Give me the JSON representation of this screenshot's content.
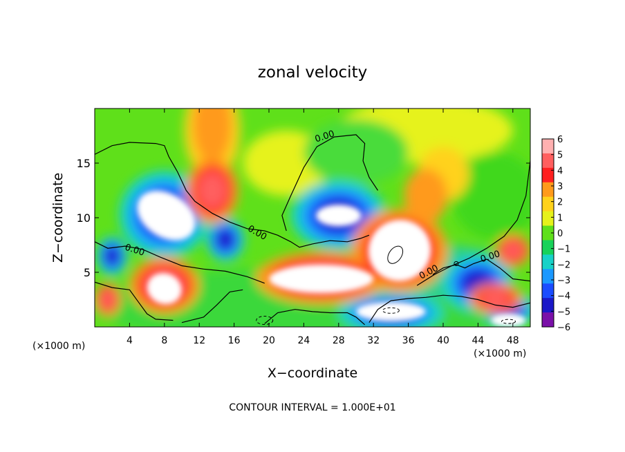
{
  "chart_data": {
    "type": "heatmap",
    "title": "zonal velocity",
    "xlabel": "X−coordinate",
    "ylabel": "Z−coordinate",
    "x_unit": "(×1000 m)",
    "y_unit": "(×1000 m)",
    "footer": "CONTOUR INTERVAL = 1.000E+01",
    "xlim": [
      0,
      50
    ],
    "ylim": [
      0,
      20
    ],
    "x_ticks": [
      4,
      8,
      12,
      16,
      20,
      24,
      28,
      32,
      36,
      40,
      44,
      48
    ],
    "y_ticks": [
      5,
      10,
      15
    ],
    "colorbar": {
      "ticks": [
        6,
        5,
        4,
        3,
        2,
        1,
        0,
        -1,
        -2,
        -3,
        -4,
        -5,
        -6
      ],
      "colors": [
        "#ffb0b0",
        "#ff5f5f",
        "#ff2020",
        "#ff9a1a",
        "#ffd21a",
        "#e6f21a",
        "#5fe01a",
        "#18d25a",
        "#18d2c8",
        "#1a98ff",
        "#1a4cff",
        "#1a18c8",
        "#7a10a8"
      ]
    },
    "contour_labels": [
      "0.00",
      "0.00",
      "0.00",
      "0.00",
      "0.00",
      "0.00"
    ],
    "features": [
      {
        "kind": "min",
        "x": 8,
        "z": 10.3,
        "rx": 4.0,
        "rz": 2.8
      },
      {
        "kind": "min",
        "x": 28,
        "z": 10.2,
        "rx": 4.5,
        "rz": 2.1
      },
      {
        "kind": "max",
        "x": 13.5,
        "z": 12.5,
        "rx": 2.4,
        "rz": 2.4
      },
      {
        "kind": "max",
        "x": 13.5,
        "z": 17.5,
        "rx": 3.0,
        "rz": 3.5
      },
      {
        "kind": "max",
        "x": 35,
        "z": 7.0,
        "rx": 5.0,
        "rz": 3.4
      },
      {
        "kind": "max",
        "x": 26,
        "z": 4.5,
        "rx": 7.0,
        "rz": 2.0
      },
      {
        "kind": "max",
        "x": 8,
        "z": 4.0,
        "rx": 4.0,
        "rz": 2.5
      },
      {
        "kind": "min",
        "x": 34,
        "z": 1.3,
        "rx": 5.0,
        "rz": 1.3
      },
      {
        "kind": "min",
        "x": 44,
        "z": 4.0,
        "rx": 4.0,
        "rz": 2.2
      }
    ]
  }
}
